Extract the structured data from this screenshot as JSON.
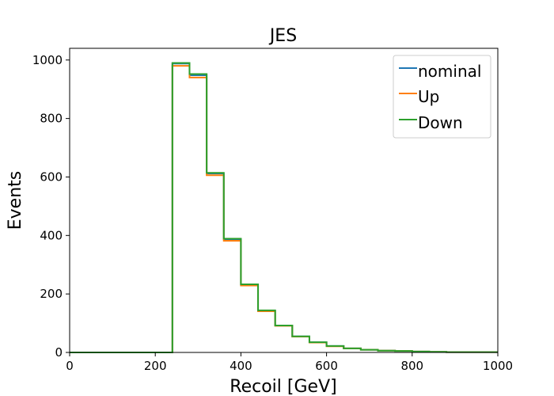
{
  "chart_data": {
    "type": "line",
    "title": "JES",
    "xlabel": "Recoil [GeV]",
    "ylabel": "Events",
    "xlim": [
      0,
      1000
    ],
    "ylim": [
      0,
      1040
    ],
    "xticks": [
      "0",
      "200",
      "400",
      "600",
      "800",
      "1000"
    ],
    "yticks": [
      "0",
      "200",
      "400",
      "600",
      "800",
      "1000"
    ],
    "grid": false,
    "legend_position": "top-right",
    "bin_edges": [
      0,
      40,
      80,
      120,
      160,
      200,
      240,
      280,
      320,
      360,
      400,
      440,
      480,
      520,
      560,
      600,
      640,
      680,
      720,
      760,
      800,
      840,
      880,
      920,
      960,
      1000
    ],
    "series": [
      {
        "name": "nominal",
        "color": "#1f77b4",
        "values": [
          0,
          0,
          0,
          0,
          0,
          0,
          988,
          948,
          612,
          387,
          232,
          143,
          92,
          55,
          35,
          22,
          14,
          9,
          6,
          5,
          3,
          2,
          1,
          1,
          1
        ]
      },
      {
        "name": "Up",
        "color": "#ff7f0e",
        "values": [
          0,
          0,
          0,
          0,
          0,
          0,
          980,
          940,
          606,
          382,
          229,
          141,
          91,
          54,
          34,
          21,
          14,
          9,
          6,
          5,
          3,
          2,
          1,
          1,
          1
        ]
      },
      {
        "name": "Down",
        "color": "#2ca02c",
        "values": [
          0,
          0,
          0,
          0,
          0,
          0,
          990,
          952,
          614,
          389,
          233,
          144,
          92,
          55,
          35,
          22,
          14,
          9,
          6,
          5,
          3,
          2,
          1,
          1,
          1
        ]
      }
    ]
  }
}
